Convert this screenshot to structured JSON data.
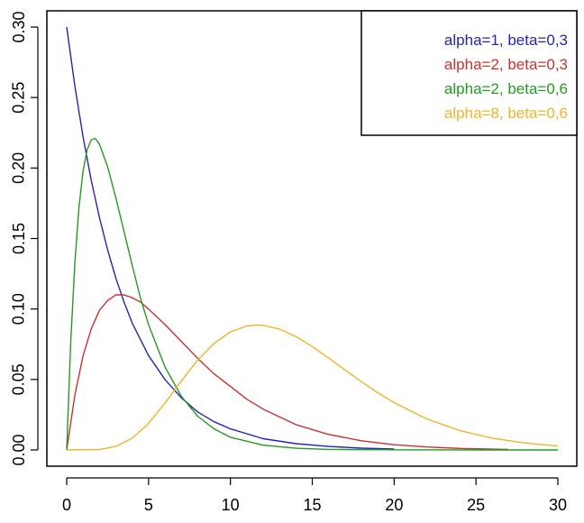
{
  "chart_data": {
    "type": "line",
    "title": "",
    "xlabel": "",
    "ylabel": "",
    "xlim": [
      0,
      30
    ],
    "ylim": [
      0,
      0.3
    ],
    "x_ticks": [
      0,
      5,
      10,
      15,
      20,
      25,
      30
    ],
    "x_tick_labels": [
      "0",
      "5",
      "10",
      "15",
      "20",
      "25",
      "30"
    ],
    "y_ticks": [
      0,
      0.05,
      0.1,
      0.15,
      0.2,
      0.25,
      0.3
    ],
    "y_tick_labels": [
      "0.00",
      "0.05",
      "0.10",
      "0.15",
      "0.20",
      "0.25",
      "0.30"
    ],
    "grid": false,
    "legend_position": "top-right",
    "series": [
      {
        "name": "alpha=1, beta=0,3",
        "color": "#2424b4",
        "x": [
          0,
          0.5,
          1,
          1.5,
          2,
          2.5,
          3,
          3.5,
          4,
          5,
          6,
          7,
          8,
          9,
          10,
          12,
          14,
          16,
          18,
          20
        ],
        "y": [
          0.3,
          0.258,
          0.222,
          0.191,
          0.165,
          0.142,
          0.122,
          0.105,
          0.09,
          0.067,
          0.05,
          0.037,
          0.027,
          0.02,
          0.015,
          0.008,
          0.0045,
          0.0025,
          0.0013,
          0.0007
        ]
      },
      {
        "name": "alpha=2, beta=0,3",
        "color": "#c83232",
        "x": [
          0,
          0.5,
          1,
          1.5,
          2,
          2.5,
          3,
          3.5,
          4,
          4.5,
          5,
          6,
          7,
          8,
          9,
          10,
          11,
          12,
          14,
          16,
          18,
          20,
          22,
          24,
          26,
          27
        ],
        "y": [
          0,
          0.039,
          0.067,
          0.086,
          0.099,
          0.106,
          0.11,
          0.11,
          0.108,
          0.105,
          0.1,
          0.089,
          0.077,
          0.065,
          0.054,
          0.045,
          0.036,
          0.029,
          0.018,
          0.011,
          0.0065,
          0.0037,
          0.0021,
          0.0011,
          0.0006,
          0.0004
        ]
      },
      {
        "name": "alpha=2, beta=0,6",
        "color": "#239b23",
        "x": [
          0,
          0.25,
          0.5,
          0.75,
          1,
          1.25,
          1.5,
          1.75,
          2,
          2.5,
          3,
          3.5,
          4,
          4.5,
          5,
          6,
          7,
          8,
          9,
          10,
          12,
          14,
          16,
          20,
          25,
          30
        ],
        "y": [
          0,
          0.077,
          0.133,
          0.172,
          0.198,
          0.213,
          0.22,
          0.221,
          0.217,
          0.201,
          0.179,
          0.155,
          0.131,
          0.108,
          0.089,
          0.059,
          0.038,
          0.024,
          0.015,
          0.009,
          0.0034,
          0.0012,
          0.0004,
          0.0001,
          0.0,
          0.0
        ]
      },
      {
        "name": "alpha=8, beta=0,6",
        "color": "#f0b428",
        "x": [
          0,
          2,
          3,
          4,
          5,
          6,
          7,
          8,
          9,
          10,
          11,
          11.7,
          12,
          13,
          14,
          15,
          16,
          17,
          18,
          19,
          20,
          22,
          24,
          26,
          28,
          30
        ],
        "y": [
          0,
          0.0004,
          0.0025,
          0.0083,
          0.0188,
          0.0332,
          0.049,
          0.0637,
          0.0756,
          0.0838,
          0.0879,
          0.0887,
          0.0884,
          0.0858,
          0.0805,
          0.0734,
          0.0652,
          0.0568,
          0.0484,
          0.0406,
          0.0336,
          0.022,
          0.0138,
          0.0084,
          0.0049,
          0.0028
        ]
      }
    ]
  }
}
